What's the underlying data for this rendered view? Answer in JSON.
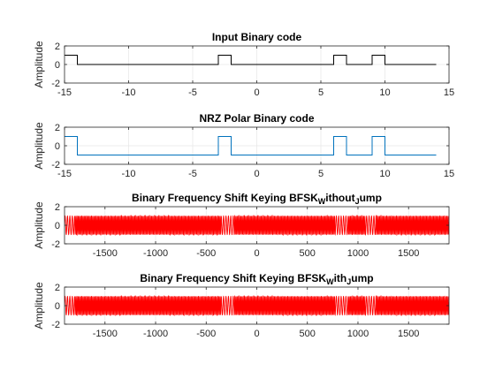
{
  "chart_data": [
    {
      "type": "line",
      "title": "Input Binary code",
      "ylabel": "Amplitude",
      "xlim": [
        -15,
        15
      ],
      "ylim": [
        -2,
        2
      ],
      "xticks": [
        -15,
        -10,
        -5,
        0,
        5,
        10,
        15
      ],
      "yticks": [
        -2,
        0,
        2
      ],
      "grid": true,
      "color": "#000000",
      "series": [
        {
          "step_x": [
            -15,
            -14,
            -3,
            -2,
            6,
            7,
            9,
            10,
            14
          ],
          "step_y": [
            1,
            0,
            1,
            0,
            1,
            0,
            1,
            0
          ]
        }
      ]
    },
    {
      "type": "line",
      "title": "NRZ Polar Binary code",
      "ylabel": "Amplitude",
      "xlim": [
        -15,
        15
      ],
      "ylim": [
        -2,
        2
      ],
      "xticks": [
        -15,
        -10,
        -5,
        0,
        5,
        10,
        15
      ],
      "yticks": [
        -2,
        0,
        2
      ],
      "grid": true,
      "color": "#0072BD",
      "series": [
        {
          "step_x": [
            -15,
            -14,
            -3,
            -2,
            6,
            7,
            9,
            10,
            14
          ],
          "step_y": [
            1,
            -1,
            1,
            -1,
            1,
            -1,
            1,
            -1
          ]
        }
      ]
    },
    {
      "type": "line",
      "title_parts": [
        "Binary Frequency Shift Keying BFSK",
        "W",
        "ithout",
        "J",
        "ump"
      ],
      "ylabel": "Amplitude",
      "xlim": [
        -1900,
        1900
      ],
      "ylim": [
        -2,
        2
      ],
      "xticks": [
        -1500,
        -1000,
        -500,
        0,
        500,
        1000,
        1500
      ],
      "yticks": [
        -2,
        0,
        2
      ],
      "grid": true,
      "color": "#FF0000",
      "series": [
        {
          "waveform": "sine",
          "amplitude": 1,
          "high_cycles_per_unit": 0.0842,
          "low_cycles_per_unit": 0.0421,
          "low_segments": [
            [
              -1900,
              -1800
            ],
            [
              -350,
              -225
            ],
            [
              775,
              900
            ],
            [
              1075,
              1175
            ]
          ]
        }
      ]
    },
    {
      "type": "line",
      "title_parts": [
        "Binary Frequency Shift Keying BFSK",
        "W",
        "ith",
        "J",
        "ump"
      ],
      "ylabel": "Amplitude",
      "xlim": [
        -1900,
        1900
      ],
      "ylim": [
        -2,
        2
      ],
      "xticks": [
        -1500,
        -1000,
        -500,
        0,
        500,
        1000,
        1500
      ],
      "yticks": [
        -2,
        0,
        2
      ],
      "grid": true,
      "color": "#FF0000",
      "series": [
        {
          "waveform": "sine",
          "amplitude": 1,
          "high_cycles_per_unit": 0.0842,
          "low_cycles_per_unit": 0.0421,
          "low_segments": [
            [
              -1900,
              -1800
            ],
            [
              -350,
              -225
            ],
            [
              775,
              900
            ],
            [
              1075,
              1175
            ]
          ]
        }
      ]
    }
  ]
}
